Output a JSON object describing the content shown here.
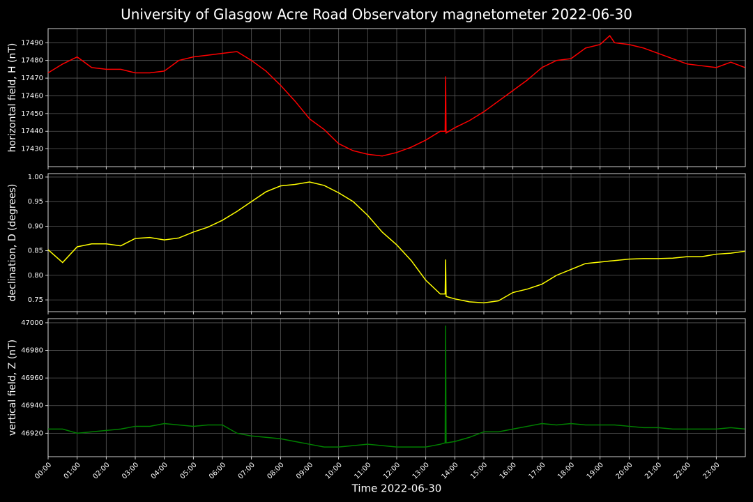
{
  "chart_data": [
    {
      "type": "line",
      "title": "University of Glasgow Acre Road Observatory magnetometer 2022-06-30",
      "ylabel": "horizontal field, H (nT)",
      "color": "#ff0000",
      "grid": true,
      "x": [
        "00:00",
        "00:30",
        "01:00",
        "01:30",
        "02:00",
        "02:30",
        "03:00",
        "03:30",
        "04:00",
        "04:30",
        "05:00",
        "05:30",
        "06:00",
        "06:30",
        "07:00",
        "07:30",
        "08:00",
        "08:30",
        "09:00",
        "09:30",
        "10:00",
        "10:30",
        "11:00",
        "11:30",
        "12:00",
        "12:30",
        "13:00",
        "13:30",
        "13:40",
        "13:41",
        "13:42",
        "14:00",
        "14:30",
        "15:00",
        "15:30",
        "16:00",
        "16:30",
        "17:00",
        "17:30",
        "18:00",
        "18:30",
        "19:00",
        "19:20",
        "19:30",
        "20:00",
        "20:30",
        "21:00",
        "21:30",
        "22:00",
        "22:30",
        "23:00",
        "23:30",
        "23:59"
      ],
      "values": [
        17473,
        17478,
        17482,
        17476,
        17475,
        17475,
        17473,
        17473,
        17474,
        17480,
        17482,
        17483,
        17484,
        17485,
        17480,
        17474,
        17466,
        17457,
        17447,
        17441,
        17433,
        17429,
        17427,
        17426,
        17428,
        17431,
        17435,
        17440,
        17440,
        17471,
        17439,
        17442,
        17446,
        17451,
        17457,
        17463,
        17469,
        17476,
        17480,
        17481,
        17487,
        17489,
        17494,
        17490,
        17489,
        17487,
        17484,
        17481,
        17478,
        17477,
        17476,
        17479,
        17476
      ],
      "ylim": [
        17420,
        17498
      ],
      "yticks": [
        17430,
        17440,
        17450,
        17460,
        17470,
        17480,
        17490
      ]
    },
    {
      "type": "line",
      "ylabel": "declination, D (degrees)",
      "color": "#ffff00",
      "grid": true,
      "x": [
        "00:00",
        "00:30",
        "01:00",
        "01:30",
        "02:00",
        "02:30",
        "03:00",
        "03:30",
        "04:00",
        "04:30",
        "05:00",
        "05:30",
        "06:00",
        "06:30",
        "07:00",
        "07:30",
        "08:00",
        "08:30",
        "09:00",
        "09:30",
        "10:00",
        "10:30",
        "11:00",
        "11:30",
        "12:00",
        "12:30",
        "13:00",
        "13:30",
        "13:40",
        "13:41",
        "13:42",
        "14:00",
        "14:30",
        "15:00",
        "15:30",
        "16:00",
        "16:30",
        "17:00",
        "17:30",
        "18:00",
        "18:30",
        "19:00",
        "19:20",
        "19:30",
        "20:00",
        "20:30",
        "21:00",
        "21:30",
        "22:00",
        "22:30",
        "23:00",
        "23:30",
        "23:59"
      ],
      "values": [
        0.852,
        0.826,
        0.858,
        0.864,
        0.864,
        0.86,
        0.875,
        0.877,
        0.872,
        0.876,
        0.888,
        0.898,
        0.912,
        0.93,
        0.95,
        0.97,
        0.982,
        0.985,
        0.99,
        0.983,
        0.968,
        0.95,
        0.922,
        0.888,
        0.862,
        0.83,
        0.79,
        0.762,
        0.762,
        0.832,
        0.757,
        0.752,
        0.746,
        0.744,
        0.748,
        0.765,
        0.772,
        0.782,
        0.8,
        0.812,
        0.824,
        0.827,
        0.829,
        0.83,
        0.833,
        0.834,
        0.834,
        0.835,
        0.838,
        0.838,
        0.843,
        0.845,
        0.849
      ],
      "ylim": [
        0.726,
        1.007
      ],
      "yticks": [
        0.75,
        {
          "value": 0.8,
          "label": "0.80"
        },
        0.85,
        {
          "value": 0.9,
          "label": "0.90"
        },
        0.95,
        {
          "value": 1.0,
          "label": "1.00"
        }
      ]
    },
    {
      "type": "line",
      "ylabel": "vertical field, Z (nT)",
      "xlabel": "Time 2022-06-30",
      "color": "#008000",
      "grid": true,
      "x": [
        "00:00",
        "00:30",
        "01:00",
        "01:30",
        "02:00",
        "02:30",
        "03:00",
        "03:30",
        "04:00",
        "04:30",
        "05:00",
        "05:30",
        "06:00",
        "06:30",
        "07:00",
        "07:30",
        "08:00",
        "08:30",
        "09:00",
        "09:30",
        "10:00",
        "10:30",
        "11:00",
        "11:30",
        "12:00",
        "12:30",
        "13:00",
        "13:30",
        "13:40",
        "13:41",
        "13:42",
        "14:00",
        "14:30",
        "15:00",
        "15:30",
        "16:00",
        "16:30",
        "17:00",
        "17:30",
        "18:00",
        "18:30",
        "19:00",
        "19:20",
        "19:30",
        "20:00",
        "20:30",
        "21:00",
        "21:30",
        "22:00",
        "22:30",
        "23:00",
        "23:30",
        "23:59"
      ],
      "values": [
        46923,
        46923,
        46920,
        46921,
        46922,
        46923,
        46925,
        46925,
        46927,
        46926,
        46925,
        46926,
        46926,
        46920,
        46918,
        46917,
        46916,
        46914,
        46912,
        46910,
        46910,
        46911,
        46912,
        46911,
        46910,
        46910,
        46910,
        46912,
        46913,
        46998,
        46913,
        46914,
        46917,
        46921,
        46921,
        46923,
        46925,
        46927,
        46926,
        46927,
        46926,
        46926,
        46926,
        46926,
        46925,
        46924,
        46924,
        46923,
        46923,
        46923,
        46923,
        46924,
        46923
      ],
      "ylim": [
        46903,
        47003
      ],
      "yticks": [
        46920,
        46940,
        46960,
        46980,
        47000
      ],
      "xlim": [
        "00:00",
        "24:00"
      ],
      "xticks": [
        "00:00",
        "01:00",
        "02:00",
        "03:00",
        "04:00",
        "05:00",
        "06:00",
        "07:00",
        "08:00",
        "09:00",
        "10:00",
        "11:00",
        "12:00",
        "13:00",
        "14:00",
        "15:00",
        "16:00",
        "17:00",
        "18:00",
        "19:00",
        "20:00",
        "21:00",
        "22:00",
        "23:00"
      ]
    }
  ]
}
